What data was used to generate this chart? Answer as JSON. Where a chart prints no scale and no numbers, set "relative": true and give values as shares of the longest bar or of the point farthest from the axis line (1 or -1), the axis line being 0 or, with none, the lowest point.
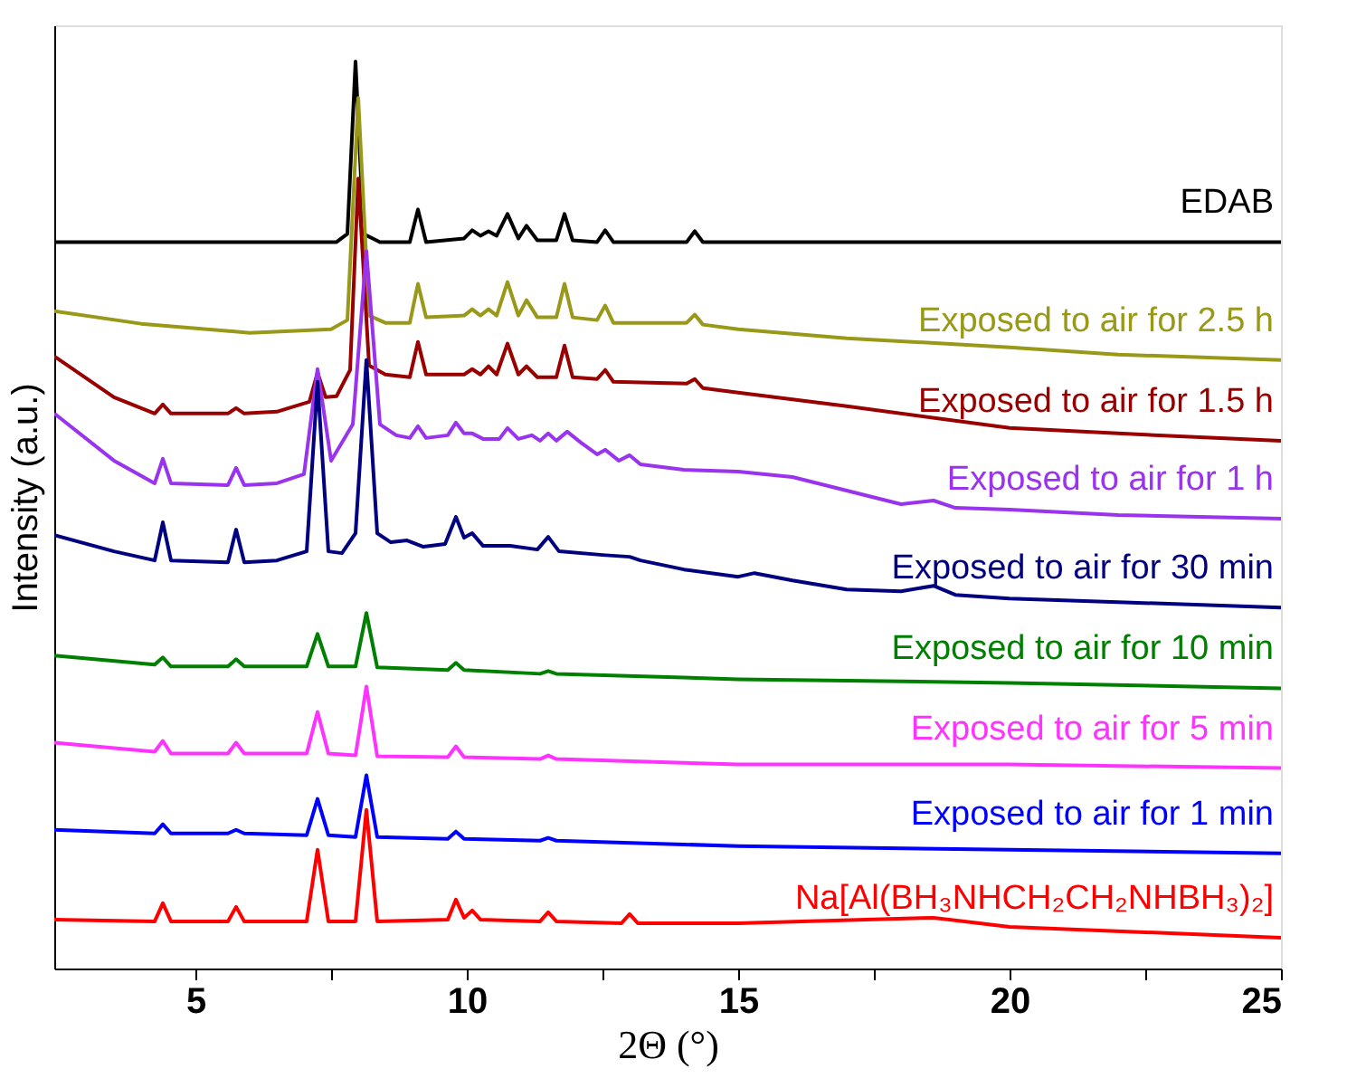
{
  "chart_data": {
    "type": "line",
    "relative": true,
    "xlabel": "2Θ (°)",
    "ylabel": "Intensity (a.u.)",
    "xlim": [
      2.4,
      25
    ],
    "xticks": [
      5,
      {
        "value": 7.5,
        "label": null
      },
      10,
      {
        "value": 12.5,
        "label": null
      },
      15,
      {
        "value": 17.5,
        "label": null
      },
      20,
      {
        "value": 22.5,
        "label": null
      },
      25
    ],
    "tick_labels": "x",
    "grid": false,
    "line_style": "solid",
    "marker": "none",
    "series": [
      {
        "name": "EDAB",
        "color": "#000000",
        "x": [
          2.4,
          7.6,
          7.8,
          7.95,
          8.1,
          8.4,
          8.95,
          9.1,
          9.25,
          9.95,
          10.1,
          10.25,
          10.4,
          10.55,
          10.75,
          10.95,
          11.1,
          11.3,
          11.65,
          11.8,
          11.95,
          12.4,
          12.55,
          12.7,
          14.05,
          14.2,
          14.35,
          25
        ],
        "values": [
          0.801,
          0.801,
          0.81,
          1.0,
          0.81,
          0.801,
          0.801,
          0.837,
          0.801,
          0.805,
          0.814,
          0.808,
          0.813,
          0.808,
          0.832,
          0.805,
          0.819,
          0.803,
          0.803,
          0.832,
          0.803,
          0.801,
          0.814,
          0.801,
          0.801,
          0.813,
          0.801,
          0.801
        ]
      },
      {
        "name": "Exposed to air for 2.5 h",
        "color": "#999919",
        "x": [
          2.4,
          4,
          6,
          7.5,
          7.8,
          8.0,
          8.2,
          8.5,
          8.95,
          9.1,
          9.25,
          9.95,
          10.1,
          10.25,
          10.4,
          10.55,
          10.75,
          10.95,
          11.1,
          11.3,
          11.65,
          11.8,
          11.95,
          12.4,
          12.55,
          12.7,
          14.05,
          14.2,
          14.35,
          15,
          17,
          20,
          22,
          25
        ],
        "values": [
          0.725,
          0.711,
          0.701,
          0.705,
          0.715,
          0.96,
          0.72,
          0.712,
          0.712,
          0.755,
          0.718,
          0.72,
          0.727,
          0.72,
          0.727,
          0.72,
          0.757,
          0.72,
          0.737,
          0.718,
          0.718,
          0.755,
          0.718,
          0.715,
          0.731,
          0.712,
          0.712,
          0.721,
          0.71,
          0.705,
          0.695,
          0.685,
          0.677,
          0.671
        ]
      },
      {
        "name": "Exposed to air for 1.5 h",
        "color": "#990000",
        "x": [
          2.4,
          3.5,
          4.25,
          4.4,
          4.55,
          5.6,
          5.75,
          5.9,
          6.5,
          7.1,
          7.25,
          7.4,
          7.6,
          7.85,
          8.0,
          8.2,
          8.5,
          8.95,
          9.1,
          9.25,
          9.95,
          10.1,
          10.25,
          10.4,
          10.55,
          10.75,
          10.95,
          11.1,
          11.3,
          11.65,
          11.8,
          11.95,
          12.4,
          12.55,
          12.7,
          14.05,
          14.2,
          14.35,
          15,
          17,
          20,
          22,
          25
        ],
        "values": [
          0.675,
          0.63,
          0.612,
          0.622,
          0.612,
          0.612,
          0.618,
          0.612,
          0.614,
          0.625,
          0.657,
          0.63,
          0.631,
          0.66,
          0.871,
          0.665,
          0.655,
          0.652,
          0.691,
          0.655,
          0.655,
          0.661,
          0.655,
          0.664,
          0.655,
          0.689,
          0.655,
          0.664,
          0.652,
          0.652,
          0.687,
          0.652,
          0.65,
          0.66,
          0.647,
          0.645,
          0.65,
          0.64,
          0.635,
          0.62,
          0.596,
          0.59,
          0.582
        ]
      },
      {
        "name": "Exposed to air for 1 h",
        "color": "#9933ee",
        "x": [
          2.4,
          3.5,
          4.25,
          4.4,
          4.55,
          5.6,
          5.75,
          5.9,
          6.5,
          7.0,
          7.25,
          7.5,
          7.9,
          8.15,
          8.4,
          8.7,
          8.95,
          9.1,
          9.25,
          9.65,
          9.8,
          9.95,
          10.1,
          10.3,
          10.6,
          10.75,
          10.95,
          11.2,
          11.35,
          11.5,
          11.65,
          11.85,
          12.1,
          12.4,
          12.55,
          12.8,
          13.0,
          13.2,
          14,
          15,
          16,
          18,
          18.6,
          19,
          20,
          22,
          25
        ],
        "values": [
          0.612,
          0.56,
          0.535,
          0.562,
          0.535,
          0.533,
          0.552,
          0.533,
          0.535,
          0.545,
          0.661,
          0.56,
          0.6,
          0.791,
          0.6,
          0.588,
          0.585,
          0.598,
          0.585,
          0.588,
          0.602,
          0.59,
          0.59,
          0.584,
          0.584,
          0.596,
          0.584,
          0.588,
          0.582,
          0.59,
          0.582,
          0.592,
          0.58,
          0.567,
          0.572,
          0.56,
          0.566,
          0.556,
          0.55,
          0.548,
          0.542,
          0.512,
          0.516,
          0.508,
          0.506,
          0.5,
          0.496
        ]
      },
      {
        "name": "Exposed to air for 30 min",
        "color": "#000080",
        "x": [
          2.4,
          3.5,
          4.25,
          4.4,
          4.55,
          5.6,
          5.75,
          5.9,
          6.5,
          7.05,
          7.25,
          7.45,
          7.7,
          7.95,
          8.15,
          8.35,
          8.6,
          8.9,
          9.2,
          9.6,
          9.8,
          9.95,
          10.1,
          10.3,
          10.8,
          11.3,
          11.5,
          11.7,
          12.5,
          13.0,
          13.2,
          14,
          15,
          15.3,
          16,
          17,
          18,
          18.6,
          19,
          20,
          22,
          25
        ],
        "values": [
          0.478,
          0.46,
          0.45,
          0.492,
          0.45,
          0.448,
          0.484,
          0.448,
          0.45,
          0.46,
          0.647,
          0.46,
          0.458,
          0.48,
          0.671,
          0.48,
          0.47,
          0.472,
          0.465,
          0.468,
          0.498,
          0.475,
          0.48,
          0.466,
          0.466,
          0.462,
          0.476,
          0.46,
          0.456,
          0.454,
          0.45,
          0.44,
          0.432,
          0.436,
          0.428,
          0.418,
          0.416,
          0.422,
          0.412,
          0.408,
          0.404,
          0.398
        ]
      },
      {
        "name": "Exposed to air for 10 min",
        "color": "#008000",
        "x": [
          2.4,
          4.25,
          4.4,
          4.55,
          5.6,
          5.75,
          5.9,
          7.05,
          7.25,
          7.45,
          7.95,
          8.15,
          8.35,
          9.65,
          9.8,
          9.95,
          11.35,
          11.5,
          11.65,
          15,
          20,
          25
        ],
        "values": [
          0.345,
          0.335,
          0.343,
          0.333,
          0.333,
          0.341,
          0.333,
          0.333,
          0.369,
          0.333,
          0.333,
          0.392,
          0.332,
          0.329,
          0.337,
          0.329,
          0.325,
          0.328,
          0.325,
          0.319,
          0.315,
          0.309
        ]
      },
      {
        "name": "Exposed to air for 5 min",
        "color": "#ff33ff",
        "x": [
          2.4,
          4.25,
          4.4,
          4.55,
          5.6,
          5.75,
          5.9,
          7.05,
          7.25,
          7.45,
          7.95,
          8.15,
          8.35,
          9.65,
          9.8,
          9.95,
          11.35,
          11.5,
          11.65,
          15,
          20,
          25
        ],
        "values": [
          0.249,
          0.239,
          0.251,
          0.237,
          0.237,
          0.249,
          0.237,
          0.237,
          0.283,
          0.237,
          0.235,
          0.311,
          0.234,
          0.233,
          0.245,
          0.233,
          0.231,
          0.235,
          0.231,
          0.225,
          0.225,
          0.221
        ]
      },
      {
        "name": "Exposed to air for 1 min",
        "color": "#0000ff",
        "x": [
          2.4,
          4.25,
          4.4,
          4.55,
          5.6,
          5.75,
          5.9,
          7.05,
          7.25,
          7.45,
          7.95,
          8.15,
          8.35,
          9.65,
          9.8,
          9.95,
          11.35,
          11.5,
          11.65,
          15,
          20,
          25
        ],
        "values": [
          0.153,
          0.149,
          0.159,
          0.149,
          0.149,
          0.153,
          0.149,
          0.147,
          0.187,
          0.147,
          0.145,
          0.213,
          0.145,
          0.143,
          0.151,
          0.143,
          0.141,
          0.144,
          0.141,
          0.135,
          0.131,
          0.127
        ]
      },
      {
        "name": "Na[Al(BH₃NHCH₂CH₂NHBH₃)₂]",
        "color": "#ff0000",
        "x": [
          2.4,
          4.25,
          4.4,
          4.55,
          5.6,
          5.75,
          5.9,
          7.05,
          7.25,
          7.45,
          7.95,
          8.15,
          8.35,
          9.65,
          9.8,
          9.95,
          10.1,
          10.25,
          11.35,
          11.5,
          11.65,
          12.85,
          13,
          13.15,
          15,
          18.6,
          20,
          25
        ],
        "values": [
          0.054,
          0.052,
          0.072,
          0.052,
          0.052,
          0.068,
          0.052,
          0.052,
          0.131,
          0.052,
          0.052,
          0.175,
          0.052,
          0.054,
          0.076,
          0.056,
          0.064,
          0.054,
          0.052,
          0.062,
          0.052,
          0.05,
          0.06,
          0.05,
          0.05,
          0.056,
          0.046,
          0.034
        ]
      }
    ]
  }
}
